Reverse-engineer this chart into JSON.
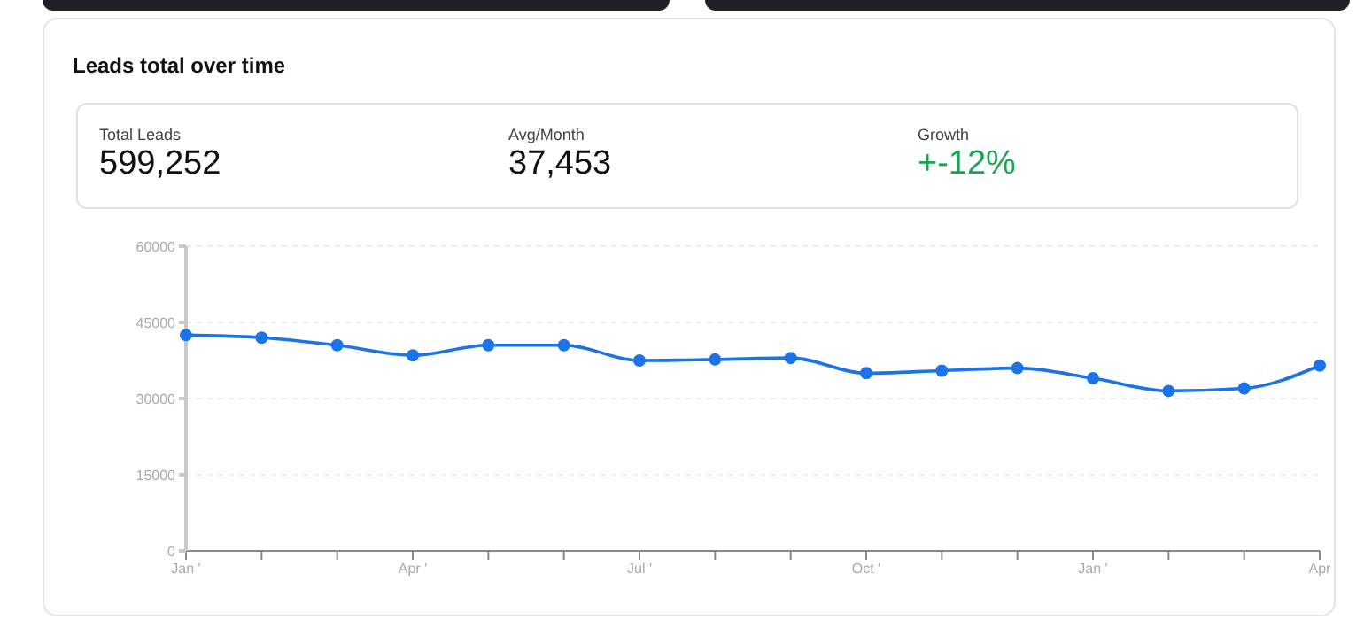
{
  "chart_data": [
    {
      "type": "other",
      "title": "Leads total over time",
      "annotations": [
        "Total Leads",
        "599,252",
        "Avg/Month",
        "37,453",
        "Growth",
        "+-12%"
      ]
    },
    {
      "type": "line",
      "categories": [
        "Jan '",
        null,
        null,
        "Apr '",
        null,
        null,
        "Jul '",
        null,
        null,
        "Oct '",
        null,
        null,
        "Jan '",
        null,
        null,
        "Apr"
      ],
      "series": [
        {
          "color": "#1a73e8",
          "values": [
            42500,
            42000,
            40500,
            38500,
            40500,
            40500,
            37500,
            37700,
            38000,
            35000,
            35500,
            36000,
            34000,
            31500,
            32000,
            36500
          ]
        }
      ],
      "ylim": [
        0,
        60000
      ],
      "yticks": [
        0,
        15000,
        30000,
        45000,
        60000
      ],
      "grid": "y",
      "legend": false,
      "marker": "circle",
      "line_style": "solid"
    }
  ]
}
